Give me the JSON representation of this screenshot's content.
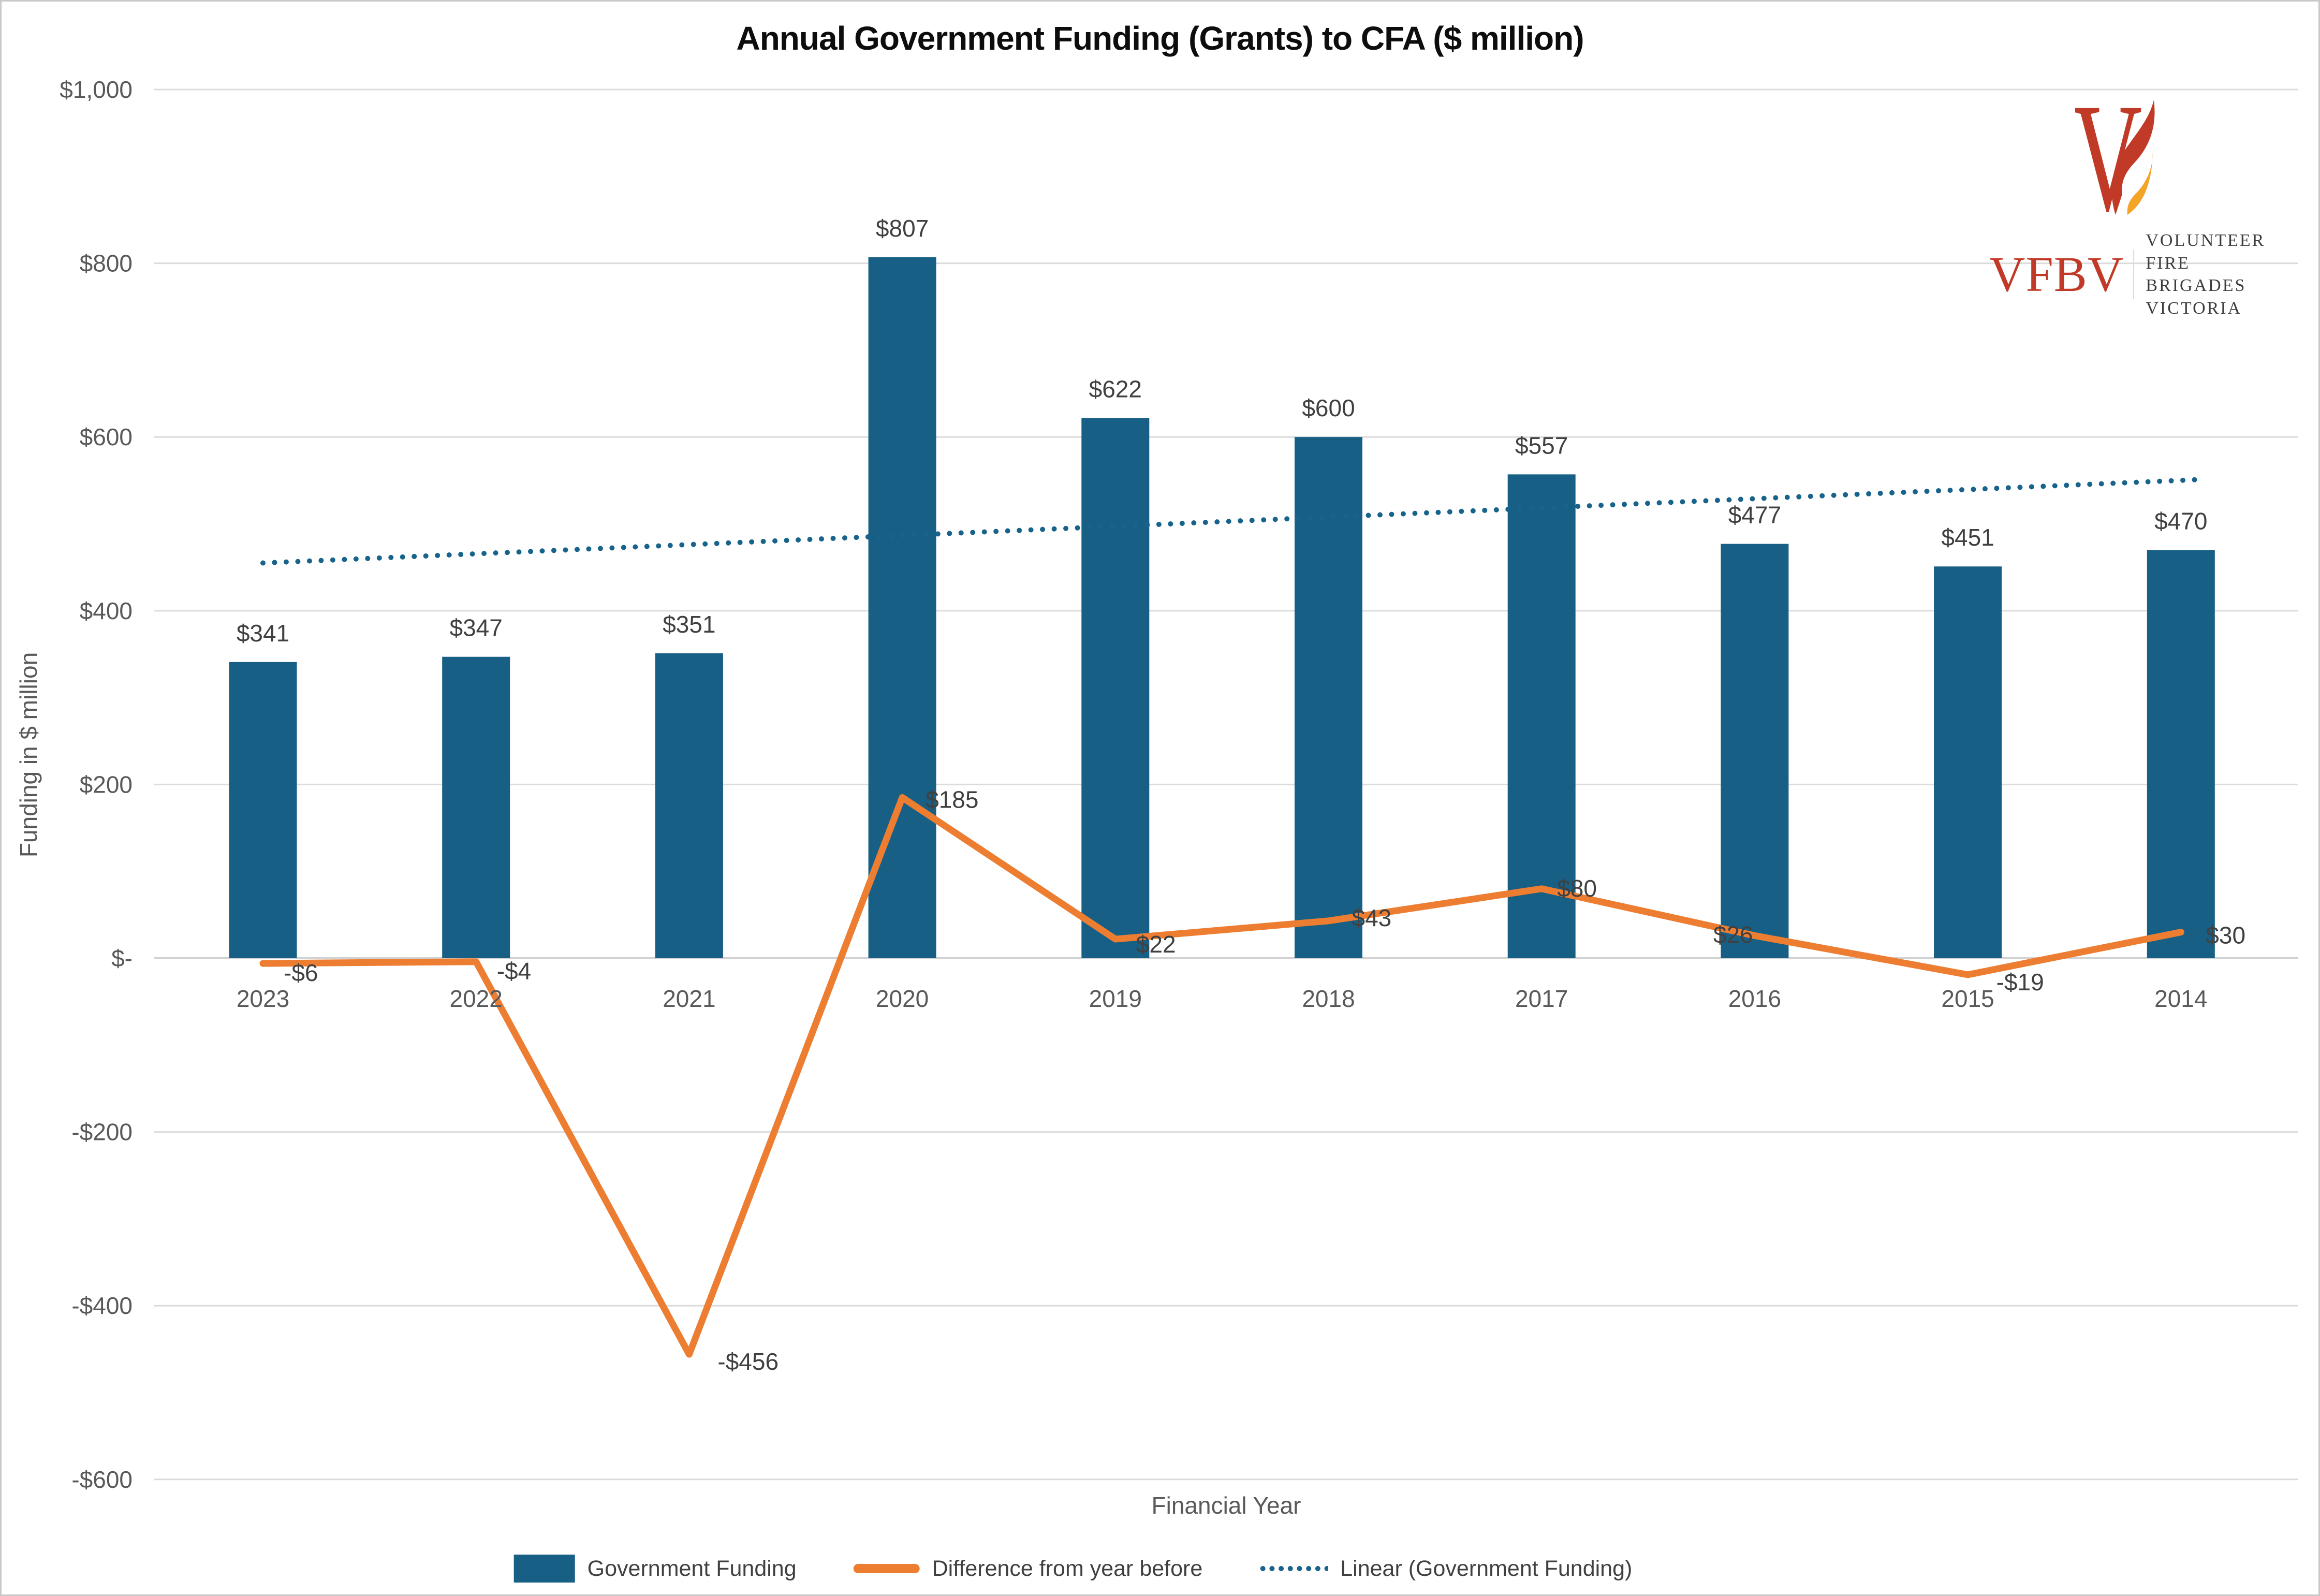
{
  "title": "Annual Government Funding (Grants) to CFA ($ million)",
  "logo": {
    "abbr": "VFBV",
    "org_line1": "VOLUNTEER FIRE",
    "org_line2": "BRIGADES VICTORIA"
  },
  "axes": {
    "y_title": "Funding in $ million",
    "x_title": "Financial Year",
    "y_tick_labels": [
      "$1,000",
      "$800",
      "$600",
      "$400",
      "$200",
      "$-",
      "-$200",
      "-$400",
      "-$600"
    ]
  },
  "legend": [
    {
      "label": "Government Funding"
    },
    {
      "label": "Difference from year before"
    },
    {
      "label": "Linear (Government Funding)"
    }
  ],
  "colors": {
    "bar": "#175f85",
    "difference_line": "#ed7d31",
    "trendline": "#17638c",
    "gridline": "#dbdbdb",
    "zero_axis": "#d2d2d2",
    "data_label_text": "#404040",
    "tick_text": "#595959",
    "title_text": "#0d0d0d",
    "logo_red": "#c13a27",
    "logo_flame_orange": "#f4a427",
    "logo_text": "#3d3d3d"
  },
  "chart_data": {
    "type": "bar",
    "title": "Annual Government Funding (Grants) to CFA ($ million)",
    "xlabel": "Financial Year",
    "ylabel": "Funding in $ million",
    "ylim": [
      -600,
      1000
    ],
    "y_tick_step": 200,
    "grid": true,
    "legend_position": "bottom",
    "categories": [
      "2023",
      "2022",
      "2021",
      "2020",
      "2019",
      "2018",
      "2017",
      "2016",
      "2015",
      "2014"
    ],
    "series": [
      {
        "name": "Government Funding",
        "type": "bar",
        "values": [
          341,
          347,
          351,
          807,
          622,
          600,
          557,
          477,
          451,
          470
        ],
        "labels": [
          "$341",
          "$347",
          "$351",
          "$807",
          "$622",
          "$600",
          "$557",
          "$477",
          "$451",
          "$470"
        ]
      },
      {
        "name": "Difference from year before",
        "type": "line",
        "values": [
          -6,
          -4,
          -456,
          185,
          22,
          43,
          80,
          26,
          -19,
          30
        ],
        "labels": [
          "-$6",
          "-$4",
          "-$456",
          "$185",
          "$22",
          "$43",
          "$80",
          "$26",
          "-$19",
          "$30"
        ]
      },
      {
        "name": "Linear (Government Funding)",
        "type": "trendline",
        "style": "dotted",
        "endpoint_values": [
          455,
          550
        ]
      }
    ]
  }
}
